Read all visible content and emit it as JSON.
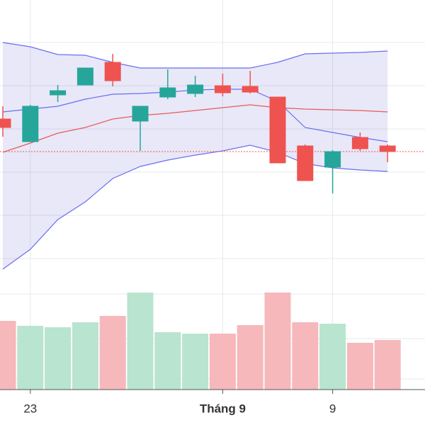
{
  "chart_data": {
    "type": "candlestick",
    "categories": [
      null,
      "23",
      null,
      null,
      null,
      null,
      null,
      null,
      "Tháng 9",
      null,
      null,
      null,
      "9",
      null,
      null
    ],
    "open": [
      232,
      200,
      266,
      280,
      312,
      229,
      263,
      268,
      279,
      278,
      263,
      194,
      164,
      206,
      194
    ],
    "high": [
      250,
      252,
      280,
      304,
      324,
      250,
      302,
      293,
      296,
      300,
      263,
      196,
      188,
      213,
      196
    ],
    "low": [
      207,
      200,
      256,
      280,
      278,
      187,
      260,
      263,
      264,
      268,
      170,
      145,
      127,
      187,
      171
    ],
    "close": [
      220,
      250,
      272,
      304,
      286,
      250,
      276,
      280,
      269,
      270,
      170,
      145,
      186,
      190,
      186
    ],
    "volume": [
      97,
      90,
      88,
      95,
      104,
      137,
      81,
      79,
      79,
      91,
      137,
      95,
      93,
      66,
      70
    ],
    "up_color": "#26a69a",
    "down_color": "#ef5350",
    "volume_up_color": "#b9e4cf",
    "volume_down_color": "#f6b8bb",
    "overlays": [
      {
        "color": "#6a6ef0",
        "values": [
          340,
          334,
          323,
          322,
          312,
          304,
          304,
          304,
          304,
          304,
          312,
          324,
          325,
          326,
          328
        ]
      },
      {
        "color": "#6a6ef0",
        "values": [
          242,
          246,
          250,
          260,
          267,
          268,
          270,
          273,
          274,
          274,
          257,
          220,
          213,
          206,
          200
        ]
      },
      {
        "color": "#6a6ef0",
        "values": [
          20,
          48,
          90,
          115,
          148,
          165,
          174,
          181,
          187,
          195,
          185,
          169,
          163,
          160,
          158
        ]
      },
      {
        "color": "#e85a5a",
        "values": [
          185,
          198,
          212,
          220,
          232,
          237,
          240,
          244,
          248,
          252,
          248,
          246,
          245,
          244,
          242
        ]
      }
    ],
    "band_fill": "rgba(110,110,210,0.16)",
    "ylim": [
      0,
      400
    ],
    "yticks": [
      340,
      279,
      218,
      157,
      96,
      35
    ],
    "volume_ylim": [
      0,
      150
    ],
    "volume_yticks": [
      135,
      72,
      15
    ],
    "grid": true
  }
}
